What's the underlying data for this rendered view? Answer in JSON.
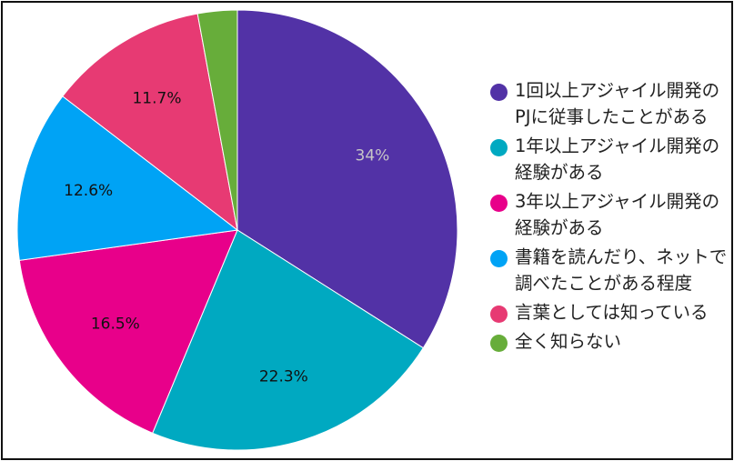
{
  "chart_data": {
    "type": "pie",
    "title": "",
    "legend_position": "right",
    "slices": [
      {
        "label": "1回以上アジャイル開発のPJに従事したことがある",
        "value": 34,
        "value_label": "34%",
        "color": "#5232a6",
        "label_color": "#c7c7c7"
      },
      {
        "label": "1年以上アジャイル開発の経験がある",
        "value": 22.3,
        "value_label": "22.3%",
        "color": "#00a9c1",
        "label_color": "#111111"
      },
      {
        "label": "3年以上アジャイル開発の経験がある",
        "value": 16.5,
        "value_label": "16.5%",
        "color": "#e8008a",
        "label_color": "#111111"
      },
      {
        "label": "書籍を読んだり、ネットで調べたことがある程度",
        "value": 12.6,
        "value_label": "12.6%",
        "color": "#00a3f5",
        "label_color": "#111111"
      },
      {
        "label": "言葉としては知っている",
        "value": 11.7,
        "value_label": "11.7%",
        "color": "#e73a73",
        "label_color": "#111111"
      },
      {
        "label": "全く知らない",
        "value": 2.9,
        "value_label": "",
        "color": "#67ad3a",
        "label_color": "#111111"
      }
    ]
  }
}
